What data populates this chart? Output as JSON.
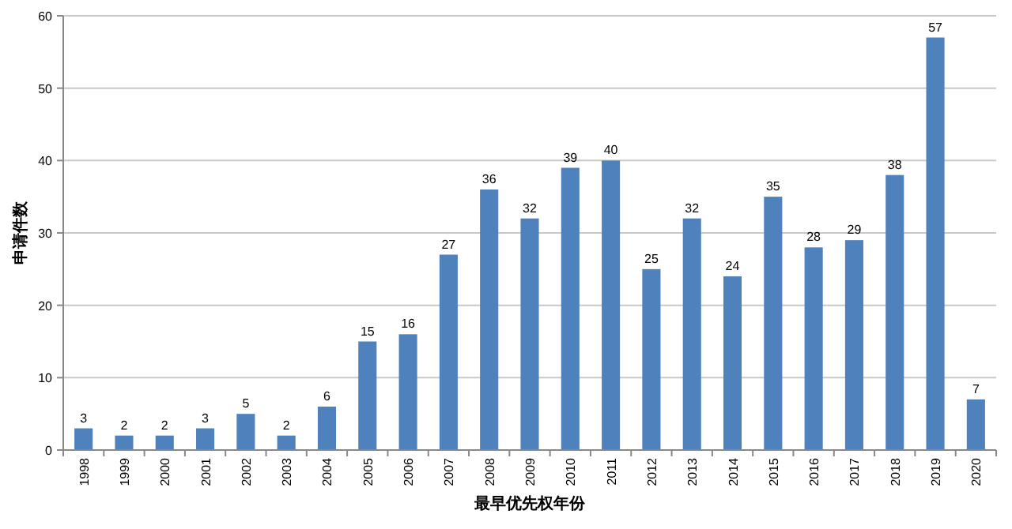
{
  "chart_data": {
    "type": "bar",
    "xlabel": "最早优先权年份",
    "ylabel": "申请件数",
    "categories": [
      "1998",
      "1999",
      "2000",
      "2001",
      "2002",
      "2003",
      "2004",
      "2005",
      "2006",
      "2007",
      "2008",
      "2009",
      "2010",
      "2011",
      "2012",
      "2013",
      "2014",
      "2015",
      "2016",
      "2017",
      "2018",
      "2019",
      "2020"
    ],
    "values": [
      3,
      2,
      2,
      3,
      5,
      2,
      6,
      15,
      16,
      27,
      36,
      32,
      39,
      40,
      25,
      32,
      24,
      35,
      28,
      29,
      38,
      57,
      7
    ],
    "color": "#4f81bd",
    "ylim": [
      0,
      60
    ],
    "yticks": [
      0,
      10,
      20,
      30,
      40,
      50,
      60
    ],
    "grid": "y",
    "data_labels": true
  }
}
